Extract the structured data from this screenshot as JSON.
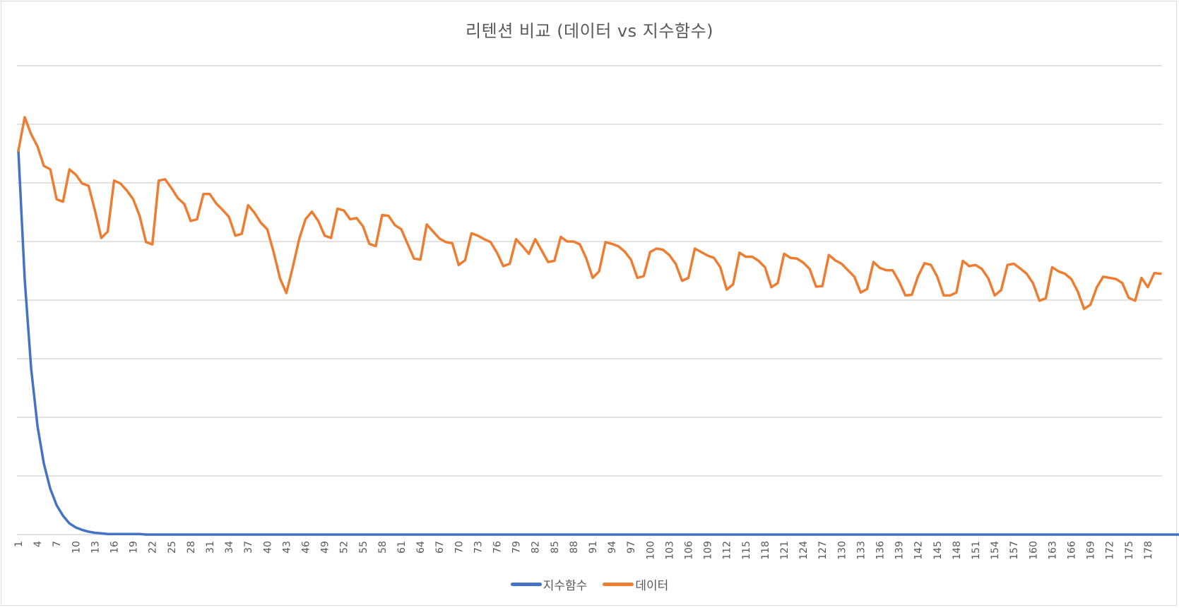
{
  "chart_data": {
    "type": "line",
    "title": "리텐션 비교 (데이터 vs 지수함수)",
    "xlabel": "",
    "ylabel": "",
    "ylim": [
      0,
      8
    ],
    "grid": true,
    "y_tick_labels_visible": false,
    "legend_position": "bottom",
    "x_tick_labels": [
      "1",
      "4",
      "7",
      "10",
      "13",
      "16",
      "19",
      "22",
      "25",
      "28",
      "31",
      "34",
      "37",
      "40",
      "43",
      "46",
      "49",
      "52",
      "55",
      "58",
      "61",
      "64",
      "67",
      "70",
      "73",
      "76",
      "79",
      "82",
      "85",
      "88",
      "91",
      "94",
      "97",
      "100",
      "103",
      "106",
      "109",
      "112",
      "115",
      "118",
      "121",
      "124",
      "127",
      "130",
      "133",
      "136",
      "139",
      "142",
      "145",
      "148",
      "151",
      "154",
      "157",
      "160",
      "163",
      "166",
      "169",
      "172",
      "175",
      "178"
    ],
    "x_start": 1,
    "x_end": 180,
    "series": [
      {
        "name": "지수함수",
        "color": "#4472c4",
        "values": [
          6.55,
          4.35,
          2.83,
          1.85,
          1.21,
          0.78,
          0.5,
          0.32,
          0.19,
          0.12,
          0.08,
          0.05,
          0.03,
          0.02,
          0.01,
          0.01,
          0.01,
          0.01,
          0.01,
          0.01,
          0,
          0,
          0,
          0,
          0,
          0,
          0,
          0,
          0,
          0,
          0,
          0,
          0,
          0,
          0,
          0,
          0,
          0,
          0,
          0,
          0,
          0,
          0,
          0,
          0,
          0,
          0,
          0,
          0,
          0,
          0,
          0,
          0,
          0,
          0,
          0,
          0,
          0,
          0,
          0,
          0,
          0,
          0,
          0,
          0,
          0,
          0,
          0,
          0,
          0,
          0,
          0,
          0,
          0,
          0,
          0,
          0,
          0,
          0,
          0,
          0,
          0,
          0,
          0,
          0,
          0,
          0,
          0,
          0,
          0,
          0,
          0,
          0,
          0,
          0,
          0,
          0,
          0,
          0,
          0,
          0,
          0,
          0,
          0,
          0,
          0,
          0,
          0,
          0,
          0,
          0,
          0,
          0,
          0,
          0,
          0,
          0,
          0,
          0,
          0,
          0,
          0,
          0,
          0,
          0,
          0,
          0,
          0,
          0,
          0,
          0,
          0,
          0,
          0,
          0,
          0,
          0,
          0,
          0,
          0,
          0,
          0,
          0,
          0,
          0,
          0,
          0,
          0,
          0,
          0,
          0,
          0,
          0,
          0,
          0,
          0,
          0,
          0,
          0,
          0,
          0,
          0,
          0,
          0,
          0,
          0,
          0,
          0,
          0,
          0,
          0,
          0,
          0,
          0,
          0,
          0,
          0,
          0,
          0,
          0,
          0,
          0,
          0,
          0
        ]
      },
      {
        "name": "데이터",
        "color": "#ed7d31",
        "values": [
          6.55,
          7.12,
          6.83,
          6.62,
          6.29,
          6.23,
          5.72,
          5.68,
          6.23,
          6.14,
          5.99,
          5.95,
          5.53,
          5.06,
          5.17,
          6.04,
          5.99,
          5.87,
          5.72,
          5.44,
          4.99,
          4.95,
          6.04,
          6.06,
          5.91,
          5.74,
          5.64,
          5.35,
          5.38,
          5.81,
          5.81,
          5.65,
          5.54,
          5.42,
          5.1,
          5.13,
          5.62,
          5.49,
          5.32,
          5.21,
          4.82,
          4.37,
          4.12,
          4.56,
          5.04,
          5.38,
          5.51,
          5.35,
          5.1,
          5.06,
          5.56,
          5.53,
          5.38,
          5.4,
          5.26,
          4.96,
          4.92,
          5.45,
          5.44,
          5.28,
          5.21,
          4.96,
          4.71,
          4.69,
          5.29,
          5.17,
          5.05,
          4.99,
          4.97,
          4.6,
          4.68,
          5.14,
          5.1,
          5.04,
          4.99,
          4.81,
          4.58,
          4.62,
          5.04,
          4.92,
          4.79,
          5.04,
          4.85,
          4.65,
          4.67,
          5.08,
          5.0,
          5.0,
          4.95,
          4.71,
          4.38,
          4.49,
          4.99,
          4.96,
          4.92,
          4.83,
          4.69,
          4.38,
          4.41,
          4.82,
          4.88,
          4.86,
          4.77,
          4.62,
          4.33,
          4.38,
          4.88,
          4.82,
          4.76,
          4.72,
          4.56,
          4.18,
          4.27,
          4.81,
          4.74,
          4.74,
          4.67,
          4.56,
          4.22,
          4.29,
          4.79,
          4.72,
          4.71,
          4.64,
          4.53,
          4.23,
          4.24,
          4.77,
          4.68,
          4.62,
          4.51,
          4.4,
          4.13,
          4.19,
          4.65,
          4.55,
          4.51,
          4.51,
          4.32,
          4.08,
          4.09,
          4.41,
          4.63,
          4.6,
          4.4,
          4.08,
          4.08,
          4.13,
          4.67,
          4.58,
          4.6,
          4.53,
          4.37,
          4.08,
          4.17,
          4.6,
          4.62,
          4.54,
          4.45,
          4.29,
          3.99,
          4.03,
          4.56,
          4.49,
          4.45,
          4.36,
          4.15,
          3.85,
          3.92,
          4.22,
          4.4,
          4.38,
          4.36,
          4.29,
          4.04,
          3.99,
          4.38,
          4.22,
          4.46,
          4.45
        ]
      }
    ]
  },
  "legend": {
    "items": [
      {
        "label": "지수함수",
        "color": "#4472c4"
      },
      {
        "label": "데이터",
        "color": "#ed7d31"
      }
    ]
  },
  "colors": {
    "gridline": "#d9d9d9",
    "axis_text": "#595959",
    "frame": "#d9d9d9"
  }
}
